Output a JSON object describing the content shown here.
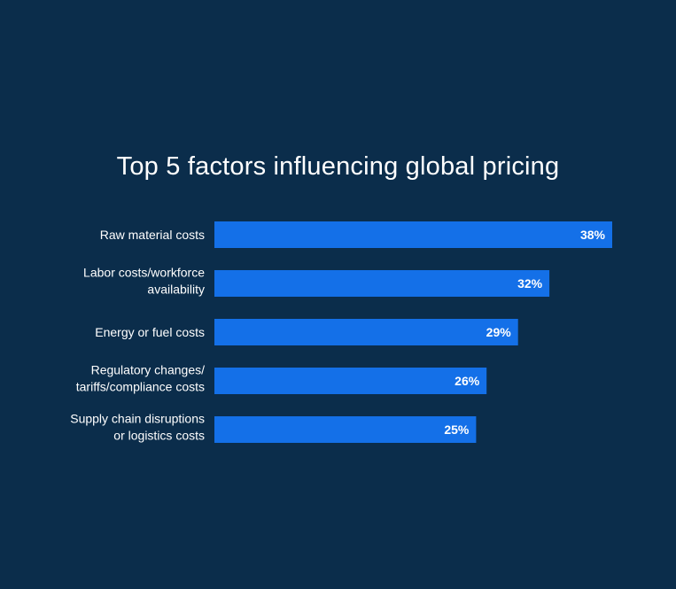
{
  "chart_data": {
    "type": "bar",
    "orientation": "horizontal",
    "title": "Top 5 factors influencing global pricing",
    "categories": [
      [
        "Raw material costs"
      ],
      [
        "Labor costs/workforce",
        "availability"
      ],
      [
        "Energy or fuel costs"
      ],
      [
        "Regulatory changes/",
        "tariffs/compliance costs"
      ],
      [
        "Supply chain disruptions",
        "or logistics costs"
      ]
    ],
    "values": [
      38,
      32,
      29,
      26,
      25
    ],
    "value_labels": [
      "38%",
      "32%",
      "29%",
      "26%",
      "25%"
    ],
    "unit": "%",
    "xlim": [
      0,
      38
    ],
    "grid": false,
    "legend": "none"
  },
  "colors": {
    "background": "#0b2d4b",
    "bar": "#1470e8",
    "text": "#ffffff"
  }
}
